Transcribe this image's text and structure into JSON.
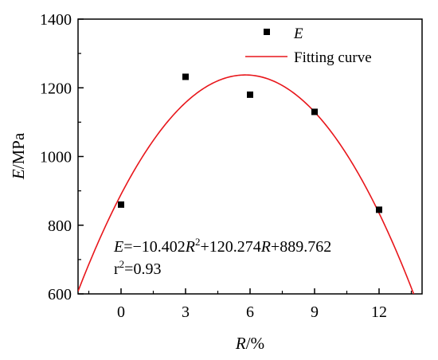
{
  "chart_data": {
    "type": "scatter",
    "xlabel_var": "R",
    "xlabel_unit": "/%",
    "ylabel_var": "E",
    "ylabel_unit": "/MPa",
    "xlim": [
      -2,
      14
    ],
    "ylim": [
      600,
      1400
    ],
    "xticks": [
      0,
      3,
      6,
      9,
      12
    ],
    "yticks": [
      600,
      800,
      1000,
      1200,
      1400
    ],
    "series": [
      {
        "name": "E",
        "marker": "square",
        "color": "#000000",
        "points": [
          {
            "x": 0,
            "y": 860
          },
          {
            "x": 3,
            "y": 1232
          },
          {
            "x": 6,
            "y": 1180
          },
          {
            "x": 9,
            "y": 1130
          },
          {
            "x": 12,
            "y": 845
          }
        ]
      },
      {
        "name": "Fitting curve",
        "type": "line",
        "color": "#e8161b",
        "coefficients": {
          "a": -10.402,
          "b": 120.274,
          "c": 889.762
        }
      }
    ],
    "annotation": {
      "equation_parts": [
        "E",
        "=−10.402",
        "R",
        "2",
        "+120.274",
        "R",
        "+889.762"
      ],
      "r2_parts": [
        "r",
        "2",
        "=0.93"
      ]
    },
    "legend_placement": "top-right",
    "grid": false
  }
}
